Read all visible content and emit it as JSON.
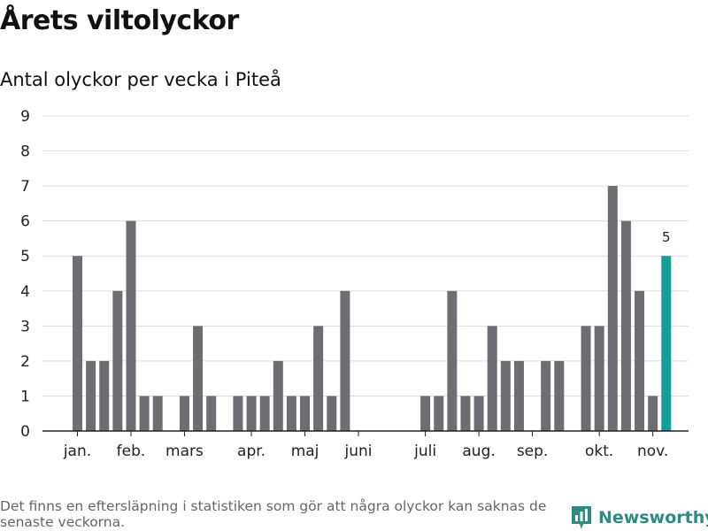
{
  "title": "Årets viltolyckor",
  "subtitle": "Antal olyckor per vecka i Piteå",
  "footnote": "Det finns en eftersläpning i statistiken som gör att några olyckor kan saknas de senaste veckorna.",
  "brand": {
    "name": "Newsworthy",
    "icon": "newsworthy-logo-icon"
  },
  "colors": {
    "bar": "#6e6d73",
    "highlight": "#129f98",
    "grid": "#dddddd",
    "axis": "#222222"
  },
  "chart_data": {
    "type": "bar",
    "ylim": [
      0,
      9
    ],
    "yticks": [
      0,
      1,
      2,
      3,
      4,
      5,
      6,
      7,
      8,
      9
    ],
    "grid": true,
    "weeks": [
      1,
      2,
      3,
      4,
      5,
      6,
      7,
      8,
      9,
      10,
      11,
      12,
      13,
      14,
      15,
      16,
      17,
      18,
      19,
      20,
      21,
      22,
      23,
      24,
      25,
      26,
      27,
      28,
      29,
      30,
      31,
      32,
      33,
      34,
      35,
      36,
      37,
      38,
      39,
      40,
      41,
      42,
      43,
      44,
      45
    ],
    "values": [
      5,
      2,
      2,
      4,
      6,
      1,
      1,
      0,
      1,
      3,
      1,
      0,
      1,
      1,
      1,
      2,
      1,
      1,
      3,
      1,
      4,
      0,
      0,
      0,
      0,
      0,
      1,
      1,
      4,
      1,
      1,
      3,
      2,
      2,
      0,
      2,
      2,
      0,
      3,
      3,
      7,
      6,
      4,
      1,
      5
    ],
    "highlight_index": 44,
    "highlight_label": "5",
    "month_labels": [
      {
        "label": "jan.",
        "week": 1
      },
      {
        "label": "feb.",
        "week": 5
      },
      {
        "label": "mars",
        "week": 9
      },
      {
        "label": "apr.",
        "week": 14
      },
      {
        "label": "maj",
        "week": 18
      },
      {
        "label": "juni",
        "week": 22
      },
      {
        "label": "juli",
        "week": 27
      },
      {
        "label": "aug.",
        "week": 31
      },
      {
        "label": "sep.",
        "week": 35
      },
      {
        "label": "okt.",
        "week": 40
      },
      {
        "label": "nov.",
        "week": 44
      }
    ]
  }
}
